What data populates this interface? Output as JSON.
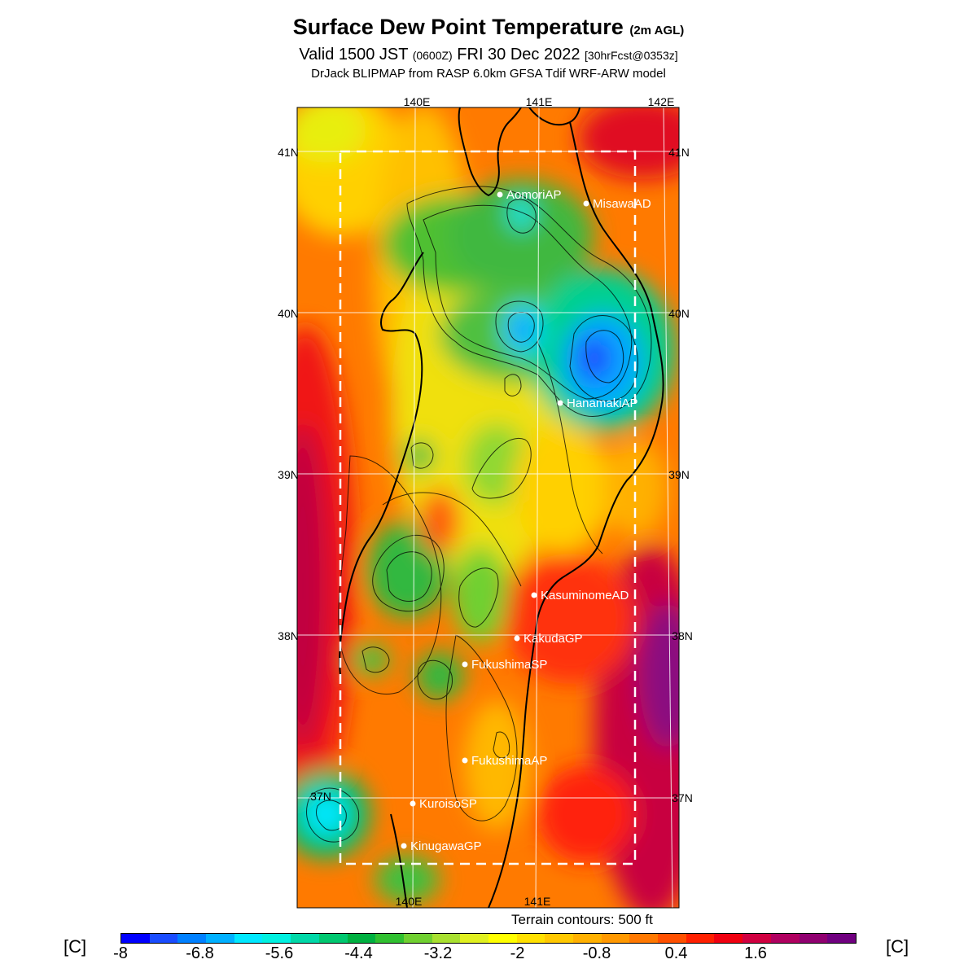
{
  "title": {
    "main": "Surface Dew Point Temperature",
    "main_suffix": "(2m AGL)"
  },
  "valid": {
    "prefix": "Valid 1500 JST",
    "utc": "(0600Z)",
    "date": "FRI 30 Dec 2022",
    "forecast": "[30hrFcst@0353z]"
  },
  "model": "DrJack BLIPMAP from RASP 6.0km GFSA Tdif WRF-ARW model",
  "map": {
    "lon_top": [
      "140E",
      "141E",
      "142E"
    ],
    "lon_bottom": [
      "140E",
      "141E"
    ],
    "lat_left": [
      "41N",
      "40N",
      "39N",
      "38N",
      "37N"
    ],
    "lat_right": [
      "41N",
      "40N",
      "39N",
      "38N",
      "37N"
    ],
    "stations": [
      {
        "name": "AomoriAP"
      },
      {
        "name": "MisawaAD"
      },
      {
        "name": "HanamakiAP"
      },
      {
        "name": "KasuminomeAD"
      },
      {
        "name": "KakudaGP"
      },
      {
        "name": "FukushimaSP"
      },
      {
        "name": "FukushimaAP"
      },
      {
        "name": "KuroisoSP"
      },
      {
        "name": "KinugawaGP"
      }
    ]
  },
  "terrain_note": "Terrain contours: 500 ft",
  "colorbar": {
    "unit": "[C]",
    "ticks": [
      "-8",
      "-6.8",
      "-5.6",
      "-4.4",
      "-3.2",
      "-2",
      "-0.8",
      "0.4",
      "1.6"
    ],
    "colors": [
      "#0000ff",
      "#1a4cff",
      "#0080ff",
      "#00b0ff",
      "#00e8ff",
      "#00f0e0",
      "#00d8a8",
      "#00c870",
      "#00b040",
      "#30c030",
      "#70d030",
      "#a8e030",
      "#e0f020",
      "#ffff00",
      "#ffe000",
      "#ffc800",
      "#ffb000",
      "#ff9800",
      "#ff7800",
      "#ff5000",
      "#ff2000",
      "#f00010",
      "#d00040",
      "#b00060",
      "#900070",
      "#700080"
    ]
  }
}
